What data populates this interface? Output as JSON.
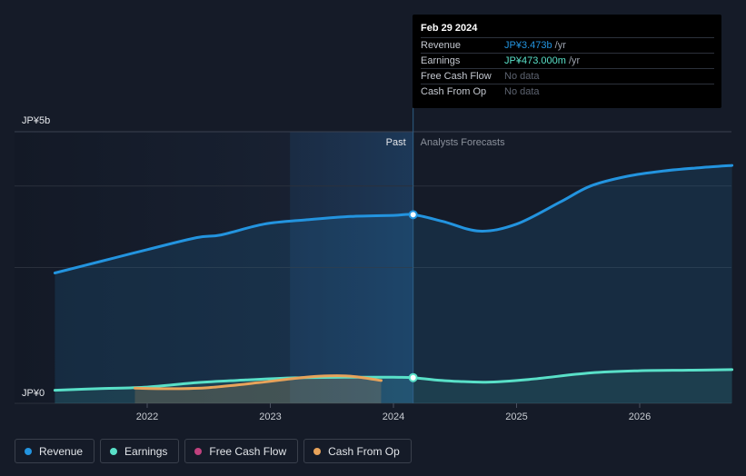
{
  "chart_data": {
    "type": "area",
    "y_axis": {
      "top_label": "JP¥5b",
      "bottom_label": "JP¥0",
      "ylim": [
        0,
        5.0
      ],
      "unit": "JP¥ billions",
      "grid": true
    },
    "x_axis": {
      "ticks": [
        "2022",
        "2023",
        "2024",
        "2025",
        "2026"
      ],
      "xlim": [
        2021.2,
        2026.75
      ]
    },
    "divider": {
      "x": 2024.16,
      "past_label": "Past",
      "forecast_label": "Analysts Forecasts"
    },
    "series": [
      {
        "name": "Revenue",
        "color": "#2394df",
        "points": [
          [
            2021.25,
            2.4
          ],
          [
            2021.6,
            2.6
          ],
          [
            2022.0,
            2.83
          ],
          [
            2022.4,
            3.05
          ],
          [
            2022.6,
            3.1
          ],
          [
            2022.95,
            3.3
          ],
          [
            2023.3,
            3.38
          ],
          [
            2023.65,
            3.44
          ],
          [
            2024.0,
            3.46
          ],
          [
            2024.16,
            3.473
          ],
          [
            2024.4,
            3.35
          ],
          [
            2024.7,
            3.17
          ],
          [
            2025.0,
            3.3
          ],
          [
            2025.35,
            3.7
          ],
          [
            2025.6,
            4.0
          ],
          [
            2025.9,
            4.18
          ],
          [
            2026.2,
            4.28
          ],
          [
            2026.5,
            4.34
          ],
          [
            2026.75,
            4.38
          ]
        ]
      },
      {
        "name": "Earnings",
        "color": "#59e0c8",
        "points": [
          [
            2021.25,
            0.24
          ],
          [
            2021.6,
            0.27
          ],
          [
            2022.0,
            0.3
          ],
          [
            2022.4,
            0.38
          ],
          [
            2022.8,
            0.43
          ],
          [
            2023.2,
            0.47
          ],
          [
            2023.6,
            0.48
          ],
          [
            2024.0,
            0.48
          ],
          [
            2024.16,
            0.473
          ],
          [
            2024.4,
            0.42
          ],
          [
            2024.75,
            0.39
          ],
          [
            2025.1,
            0.44
          ],
          [
            2025.6,
            0.56
          ],
          [
            2026.0,
            0.6
          ],
          [
            2026.4,
            0.61
          ],
          [
            2026.75,
            0.62
          ]
        ]
      },
      {
        "name": "Free Cash Flow",
        "color": "#c0417e",
        "points": []
      },
      {
        "name": "Cash From Op",
        "color": "#e8a35a",
        "points": [
          [
            2021.9,
            0.28
          ],
          [
            2022.2,
            0.27
          ],
          [
            2022.5,
            0.29
          ],
          [
            2022.9,
            0.38
          ],
          [
            2023.2,
            0.46
          ],
          [
            2023.4,
            0.5
          ],
          [
            2023.65,
            0.5
          ],
          [
            2023.9,
            0.42
          ]
        ]
      }
    ]
  },
  "tooltip": {
    "date": "Feb 29 2024",
    "rows": [
      {
        "label": "Revenue",
        "value": "JP¥3.473b",
        "unit": " /yr",
        "color": "#2394df"
      },
      {
        "label": "Earnings",
        "value": "JP¥473.000m",
        "unit": " /yr",
        "color": "#59e0c8"
      },
      {
        "label": "Free Cash Flow",
        "value": "No data",
        "unit": "",
        "color": "#5d6370"
      },
      {
        "label": "Cash From Op",
        "value": "No data",
        "unit": "",
        "color": "#5d6370"
      }
    ]
  },
  "legend": [
    {
      "label": "Revenue",
      "color": "#2394df"
    },
    {
      "label": "Earnings",
      "color": "#59e0c8"
    },
    {
      "label": "Free Cash Flow",
      "color": "#c0417e"
    },
    {
      "label": "Cash From Op",
      "color": "#e8a35a"
    }
  ]
}
